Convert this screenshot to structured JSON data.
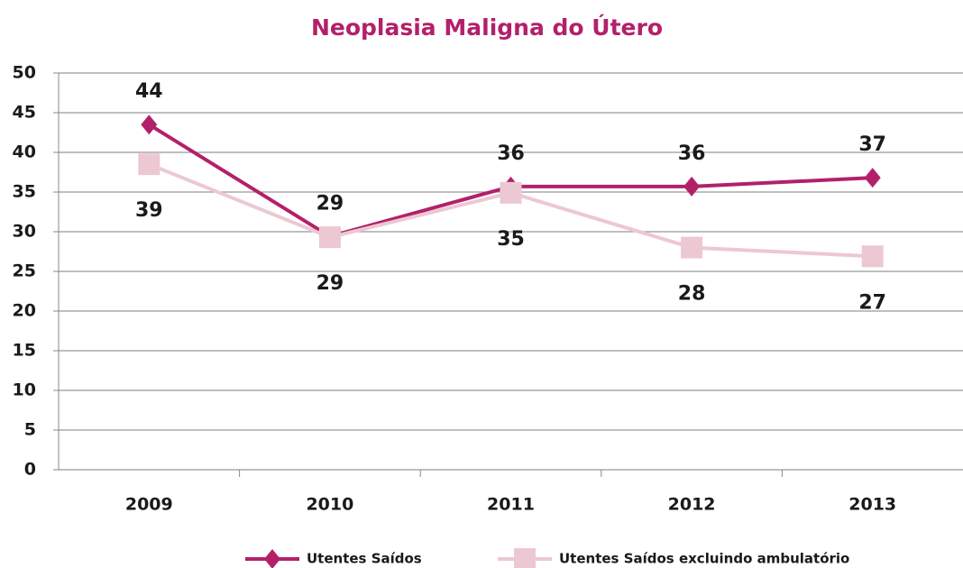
{
  "chart_data": {
    "type": "line",
    "title": "Neoplasia Maligna do Útero",
    "categories": [
      "2009",
      "2010",
      "2011",
      "2012",
      "2013"
    ],
    "series": [
      {
        "name": "Utentes Saídos",
        "color": "#b3206a",
        "marker": "diamond",
        "values": [
          43.5,
          29.4,
          35.7,
          35.7,
          36.8
        ],
        "value_labels": [
          "44",
          "29",
          "36",
          "36",
          "37"
        ]
      },
      {
        "name": "Utentes Saídos excluindo ambulatório",
        "color": "#ecc8d3",
        "marker": "square",
        "values": [
          38.5,
          29.3,
          34.9,
          28,
          26.9
        ],
        "value_labels": [
          "39",
          "29",
          "35",
          "28",
          "27"
        ]
      }
    ],
    "ylim": [
      0,
      50
    ],
    "yticks": [
      0,
      5,
      10,
      15,
      20,
      25,
      30,
      35,
      40,
      45,
      50
    ],
    "grid": true,
    "legend": "bottom"
  }
}
